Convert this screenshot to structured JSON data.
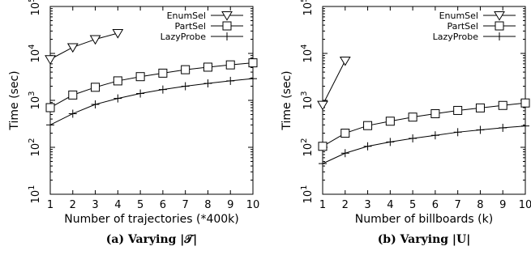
{
  "chart_data": [
    {
      "type": "line",
      "caption": "(a) Varying |𝒯|",
      "xlabel": "Number of trajectories (*400k)",
      "ylabel": "Time (sec)",
      "xlim": [
        1,
        10
      ],
      "ylim_exp": [
        1,
        5
      ],
      "yscale": "log",
      "xticks": [
        "1",
        "2",
        "3",
        "4",
        "5",
        "6",
        "7",
        "8",
        "9",
        "10"
      ],
      "yticks": [
        {
          "base": "10",
          "exp": "1"
        },
        {
          "base": "10",
          "exp": "2"
        },
        {
          "base": "10",
          "exp": "3"
        },
        {
          "base": "10",
          "exp": "4"
        },
        {
          "base": "10",
          "exp": "5"
        }
      ],
      "legend_position": "top-right",
      "series": [
        {
          "name": "EnumSel",
          "marker": "triangle-down",
          "x": [
            1,
            2,
            3,
            4
          ],
          "y": [
            7500,
            13500,
            20000,
            27000
          ]
        },
        {
          "name": "PartSel",
          "marker": "square",
          "x": [
            1,
            2,
            3,
            4,
            5,
            6,
            7,
            8,
            9,
            10
          ],
          "y": [
            700,
            1300,
            1900,
            2600,
            3200,
            3800,
            4500,
            5100,
            5700,
            6300
          ]
        },
        {
          "name": "LazyProbe",
          "marker": "plus",
          "x": [
            1,
            2,
            3,
            4,
            5,
            6,
            7,
            8,
            9,
            10
          ],
          "y": [
            300,
            520,
            820,
            1100,
            1400,
            1700,
            2000,
            2300,
            2600,
            2900
          ]
        }
      ]
    },
    {
      "type": "line",
      "caption": "(b) Varying |U|",
      "xlabel": "Number of billboards (k)",
      "ylabel": "Time (sec)",
      "xlim": [
        1,
        10
      ],
      "ylim_exp": [
        1,
        5
      ],
      "yscale": "log",
      "xticks": [
        "1",
        "2",
        "3",
        "4",
        "5",
        "6",
        "7",
        "8",
        "9",
        "10"
      ],
      "yticks": [
        {
          "base": "10",
          "exp": "1"
        },
        {
          "base": "10",
          "exp": "2"
        },
        {
          "base": "10",
          "exp": "3"
        },
        {
          "base": "10",
          "exp": "4"
        },
        {
          "base": "10",
          "exp": "5"
        }
      ],
      "legend_position": "top-right",
      "series": [
        {
          "name": "EnumSel",
          "marker": "triangle-down",
          "x": [
            1,
            2
          ],
          "y": [
            800,
            7000
          ]
        },
        {
          "name": "PartSel",
          "marker": "square",
          "x": [
            1,
            2,
            3,
            4,
            5,
            6,
            7,
            8,
            9,
            10
          ],
          "y": [
            105,
            200,
            290,
            360,
            440,
            520,
            610,
            690,
            780,
            880
          ]
        },
        {
          "name": "LazyProbe",
          "marker": "plus",
          "x": [
            1,
            2,
            3,
            4,
            5,
            6,
            7,
            8,
            9,
            10
          ],
          "y": [
            45,
            75,
            105,
            130,
            155,
            180,
            210,
            235,
            260,
            285
          ]
        }
      ]
    }
  ]
}
